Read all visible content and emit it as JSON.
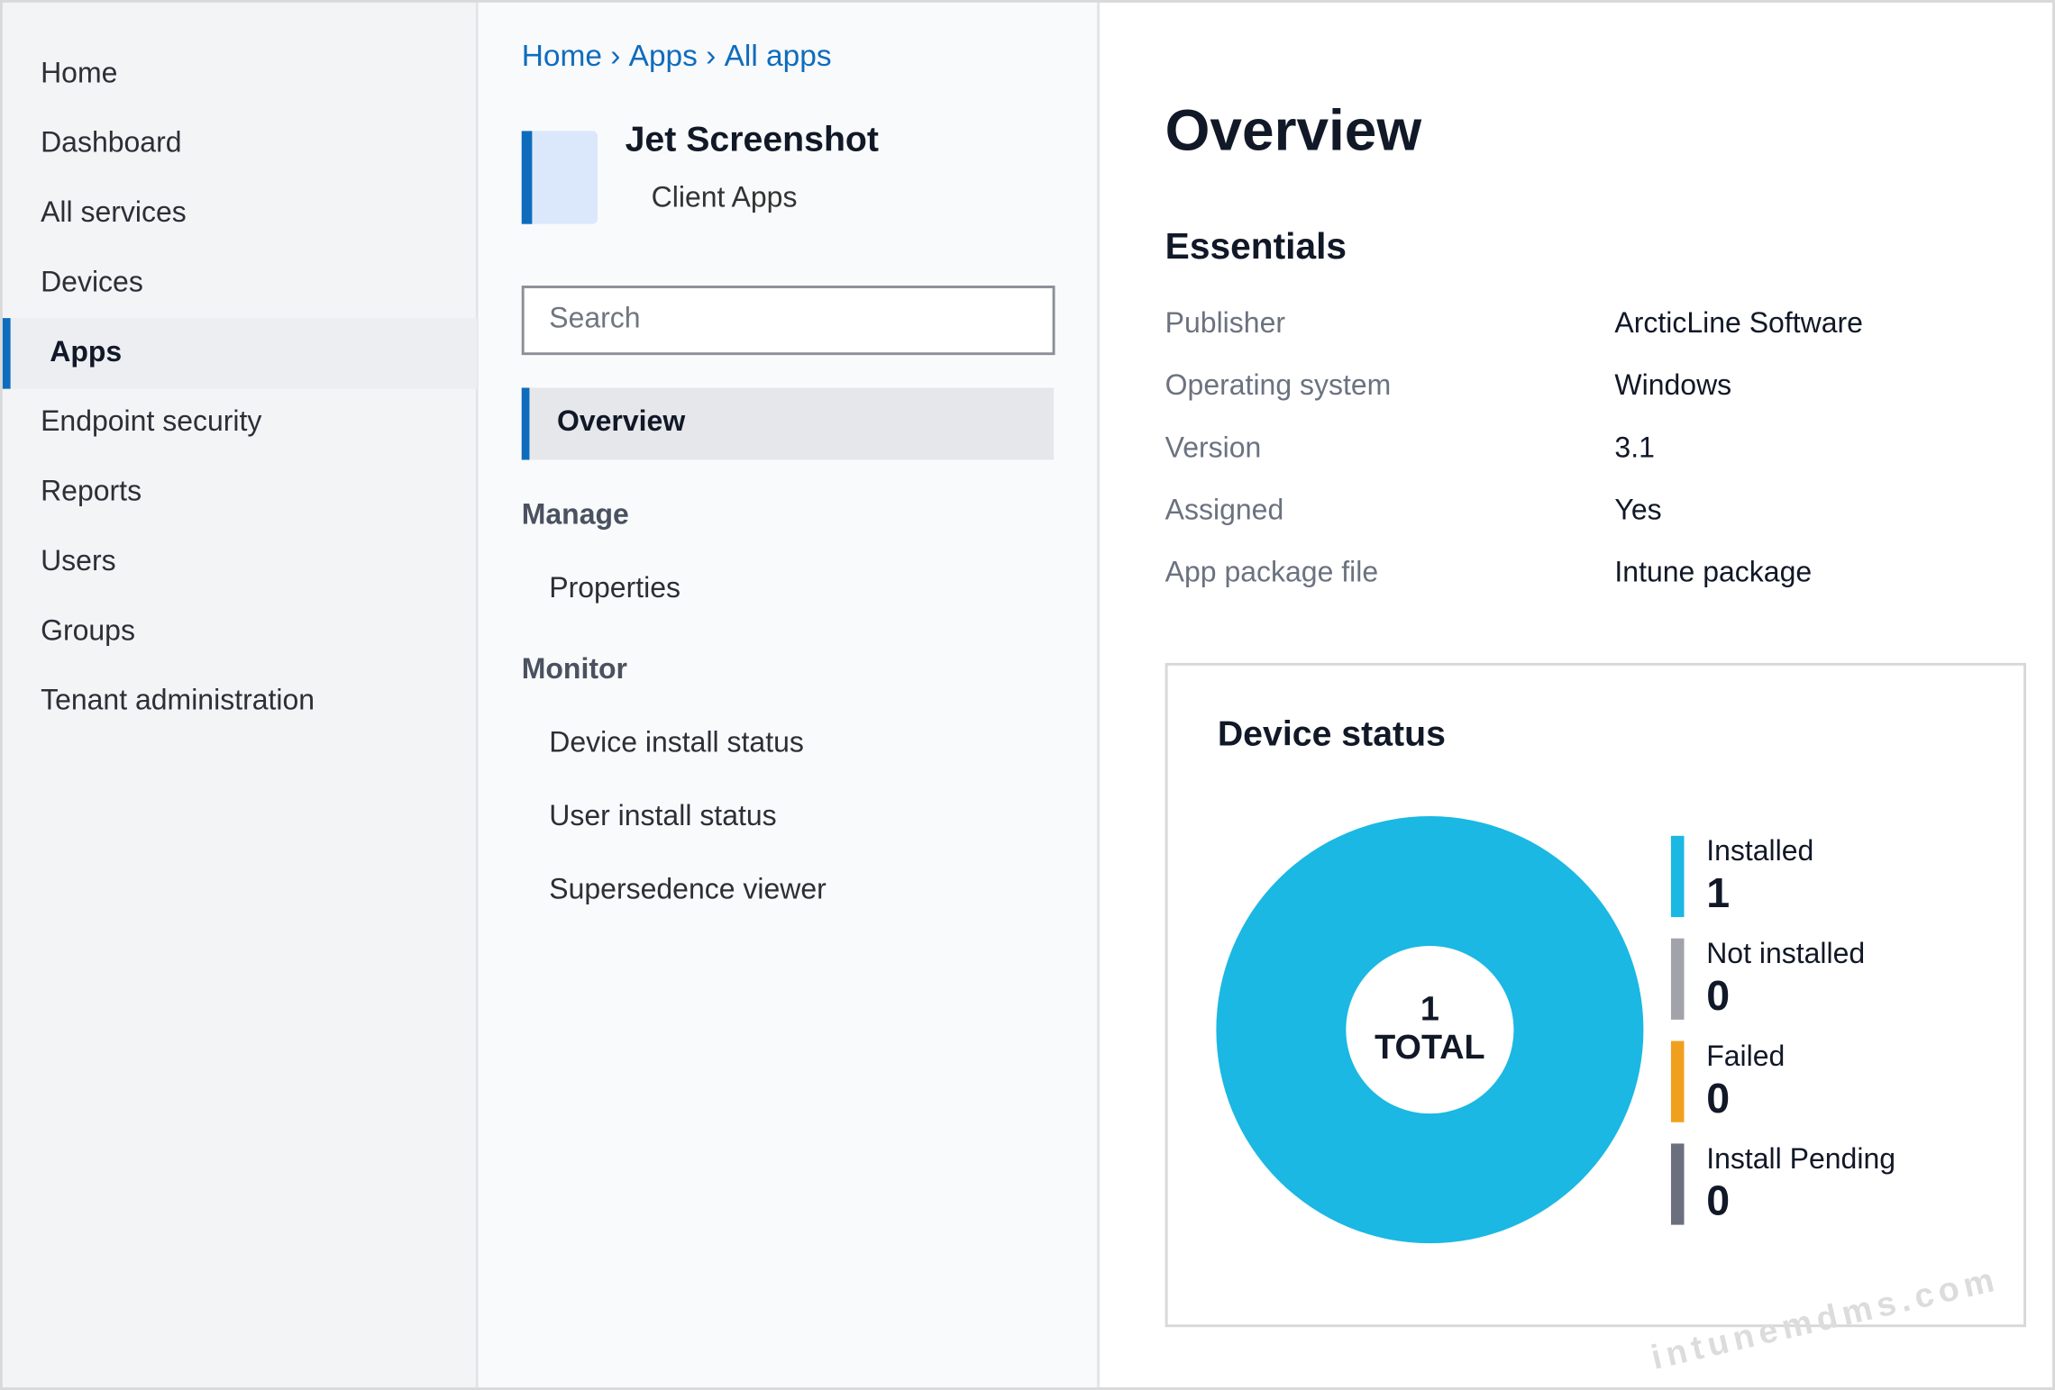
{
  "sidebar": {
    "items": [
      "Home",
      "Dashboard",
      "All services",
      "Devices",
      "Apps",
      "Endpoint security",
      "Reports",
      "Users",
      "Groups",
      "Tenant administration"
    ],
    "active": 4
  },
  "breadcrumb": {
    "items": [
      "Home",
      "Apps",
      "All apps"
    ],
    "separator": "›"
  },
  "app": {
    "name": "Jet Screenshot",
    "subtitle": "Client Apps"
  },
  "search": {
    "placeholder": "Search"
  },
  "menu": {
    "overview": "Overview",
    "sections": [
      {
        "title": "Manage",
        "items": [
          "Properties"
        ]
      },
      {
        "title": "Monitor",
        "items": [
          "Device install status",
          "User install status",
          "Supersedence viewer"
        ]
      }
    ]
  },
  "overview": {
    "title": "Overview",
    "essentials_title": "Essentials",
    "essentials": [
      [
        "Publisher",
        "ArcticLine Software"
      ],
      [
        "Operating system",
        "Windows"
      ],
      [
        "Version",
        "3.1"
      ],
      [
        "Assigned",
        "Yes"
      ],
      [
        "App package file",
        "Intune package"
      ]
    ]
  },
  "chart_data": {
    "type": "donut",
    "title": "Device status",
    "categories": [
      "Installed",
      "Not installed",
      "Failed",
      "Install Pending"
    ],
    "values": [
      1,
      0,
      0,
      0
    ],
    "colors": [
      "#1ab8e3",
      "#a2a3aa",
      "#f0a01e",
      "#6c707e"
    ],
    "total": 1,
    "total_label": "TOTAL"
  },
  "watermark": "intunemdms.com"
}
